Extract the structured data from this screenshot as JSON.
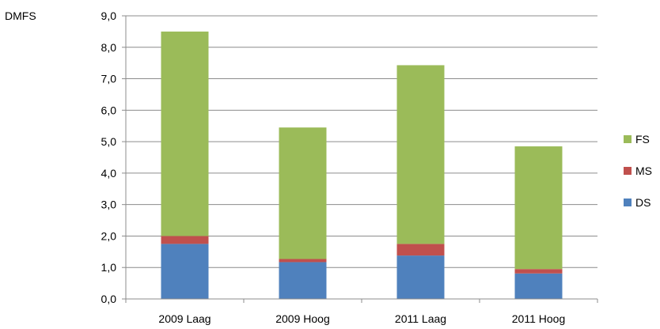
{
  "chart_data": {
    "type": "bar",
    "stacked": true,
    "ylabel": "DMFS",
    "categories": [
      "2009 Laag",
      "2009 Hoog",
      "2011 Laag",
      "2011 Hoog"
    ],
    "series": [
      {
        "name": "DS",
        "color": "#4f81bd",
        "values": [
          1.75,
          1.17,
          1.38,
          0.81
        ]
      },
      {
        "name": "MS",
        "color": "#c0504d",
        "values": [
          0.25,
          0.1,
          0.37,
          0.14
        ]
      },
      {
        "name": "FS",
        "color": "#9bbb59",
        "values": [
          6.5,
          4.18,
          5.68,
          3.9
        ]
      }
    ],
    "ylim": [
      0,
      9
    ],
    "ytick_step": 1,
    "yticks": [
      "0,0",
      "1,0",
      "2,0",
      "3,0",
      "4,0",
      "5,0",
      "6,0",
      "7,0",
      "8,0",
      "9,0"
    ],
    "grid": true,
    "legend": {
      "position": "right",
      "order": [
        "FS",
        "MS",
        "DS"
      ]
    }
  }
}
